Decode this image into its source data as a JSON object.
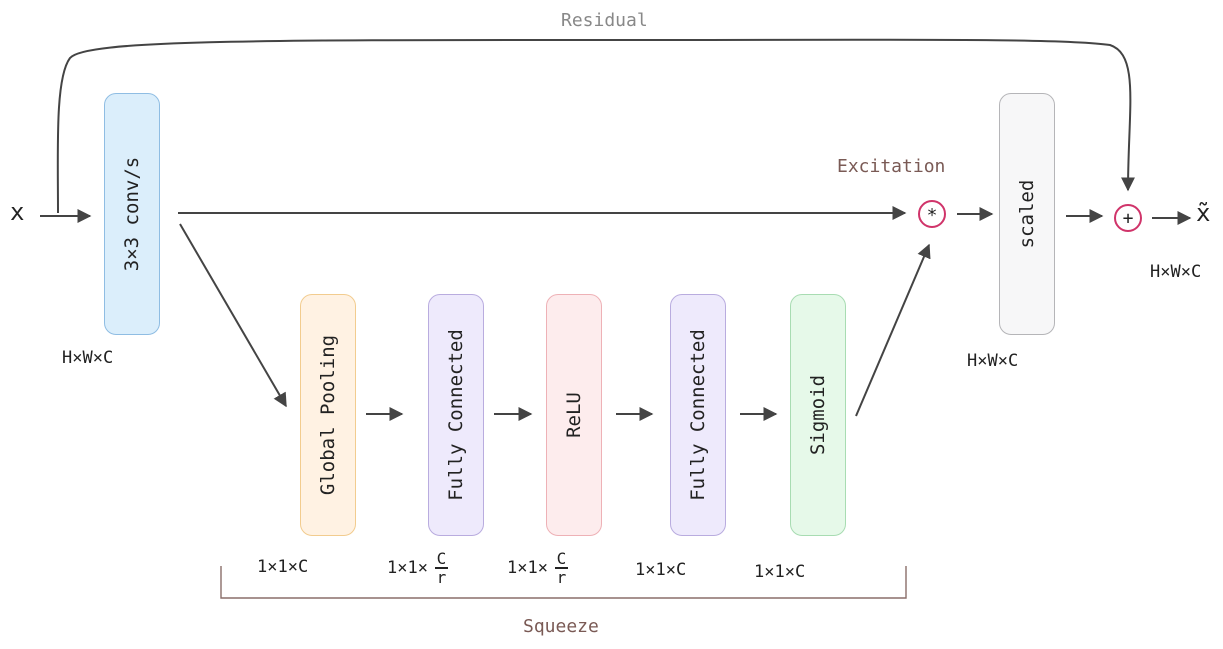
{
  "residual_label": "Residual",
  "excitation_label": "Excitation",
  "squeeze_label": "Squeeze",
  "input_label": "x",
  "output_label": "x̃",
  "conv_block": {
    "label": "3×3 conv/s",
    "dim": "H×W×C",
    "color": "#dbeefb",
    "border": "#8fbde3"
  },
  "scaled_block": {
    "label": "scaled",
    "dim": "H×W×C",
    "color": "#f7f7f8",
    "border": "#b5b5b8"
  },
  "output_dim": "H×W×C",
  "multiply_symbol": "*",
  "add_symbol": "+",
  "squeeze_blocks": [
    {
      "label": "Global Pooling",
      "dim": "1×1×C",
      "color": "#fff2e3",
      "border": "#f2cc8f"
    },
    {
      "label": "Fully Connected",
      "dim_prefix": "1×1×",
      "dim_num": "C",
      "dim_den": "r",
      "color": "#eeeafc",
      "border": "#b9acdf"
    },
    {
      "label": "ReLU",
      "dim_prefix": "1×1×",
      "dim_num": "C",
      "dim_den": "r",
      "color": "#fdeced",
      "border": "#eeb1b6"
    },
    {
      "label": "Fully Connected",
      "dim": "1×1×C",
      "color": "#eeeafc",
      "border": "#b9acdf"
    },
    {
      "label": "Sigmoid",
      "dim": "1×1×C",
      "color": "#e6f9e9",
      "border": "#a8dcb2"
    }
  ],
  "colors": {
    "accent": "#d0346a",
    "arrow": "#444444",
    "title": "#7a5a55",
    "residual": "#888888"
  }
}
